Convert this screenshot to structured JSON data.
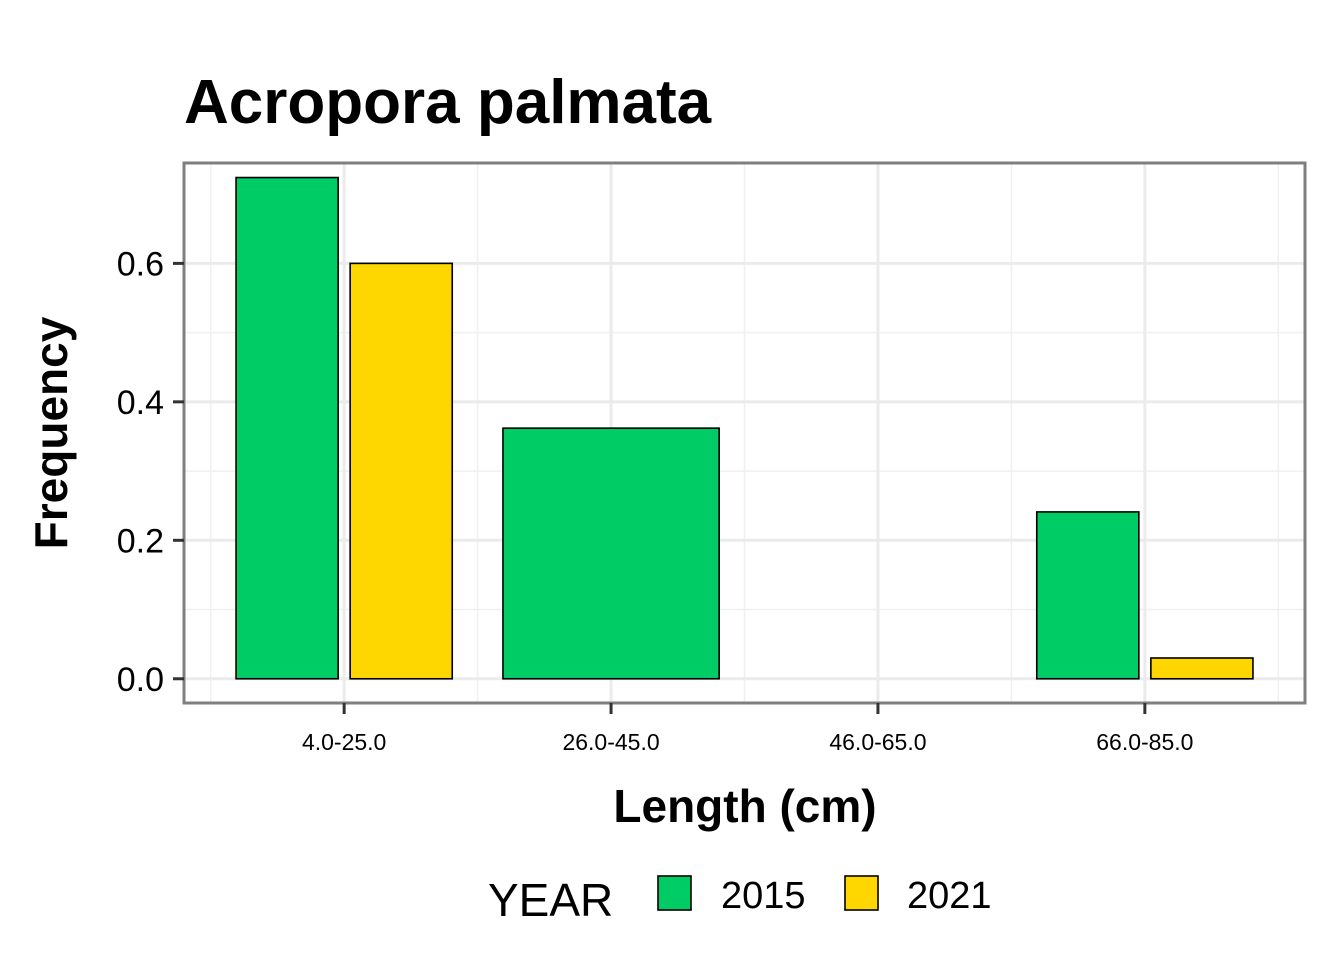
{
  "chart_data": {
    "type": "bar",
    "title": "Acropora palmata",
    "xlabel": "Length (cm)",
    "ylabel": "Frequency",
    "categories": [
      "4.0-25.0",
      "26.0-45.0",
      "46.0-65.0",
      "66.0-85.0"
    ],
    "series": [
      {
        "name": "2015",
        "color": "#00CC66",
        "values": [
          0.724,
          0.362,
          null,
          0.241
        ]
      },
      {
        "name": "2021",
        "color": "#FFD700",
        "values": [
          0.6,
          null,
          null,
          0.03
        ]
      }
    ],
    "ylim": [
      -0.035,
      0.745
    ],
    "yticks": [
      0.0,
      0.2,
      0.4,
      0.6
    ],
    "ytick_labels": [
      "0.0",
      "0.2",
      "0.4",
      "0.6"
    ],
    "grid": true,
    "legend": {
      "title": "YEAR",
      "position": "bottom"
    }
  }
}
